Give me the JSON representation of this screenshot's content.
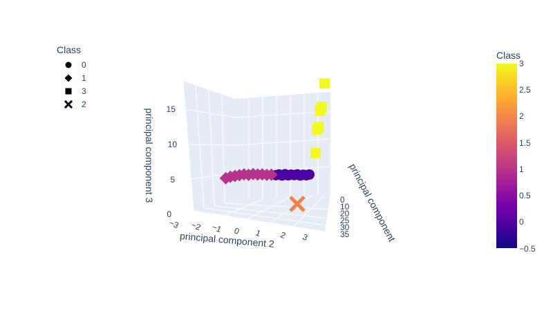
{
  "legend": {
    "title": "Class",
    "items": [
      {
        "label": "0",
        "symbol": "circle"
      },
      {
        "label": "1",
        "symbol": "diamond"
      },
      {
        "label": "3",
        "symbol": "square"
      },
      {
        "label": "2",
        "symbol": "x"
      }
    ]
  },
  "colorbar": {
    "title": "Class",
    "ticks": [
      "3",
      "2.5",
      "2",
      "1.5",
      "1",
      "0.5",
      "0",
      "−0.5"
    ],
    "colorscale": "plasma",
    "range": [
      -0.5,
      3
    ]
  },
  "axes": {
    "x_label": "principal component",
    "y_label": "principal component 2",
    "z_label": "principal component 3",
    "x_ticks": [
      "0",
      "10",
      "20",
      "25",
      "30",
      "35"
    ],
    "y_ticks": [
      "−3",
      "−2",
      "−1",
      "0",
      "1",
      "2",
      "3"
    ],
    "z_ticks": [
      "0",
      "5",
      "10",
      "15"
    ]
  },
  "chart_data": {
    "type": "scatter",
    "subtype": "scatter3d",
    "xlabel": "principal component",
    "ylabel": "principal component 2",
    "zlabel": "principal component 3",
    "ylim": [
      -3,
      3
    ],
    "zlim": [
      0,
      18
    ],
    "grid": true,
    "legend_position": "top-left",
    "series": [
      {
        "name": "0",
        "symbol": "circle",
        "color": "#4a03a1",
        "points": [
          {
            "y": 0.6,
            "z": 3.2
          },
          {
            "y": 0.8,
            "z": 3.3
          },
          {
            "y": 1.0,
            "z": 3.1
          },
          {
            "y": 1.2,
            "z": 3.3
          },
          {
            "y": 1.4,
            "z": 3.1
          },
          {
            "y": 1.6,
            "z": 3.2
          },
          {
            "y": 1.8,
            "z": 3.1
          },
          {
            "y": 2.0,
            "z": 3.2
          },
          {
            "y": 2.2,
            "z": 3.0
          },
          {
            "y": 2.4,
            "z": 3.1
          },
          {
            "y": 2.6,
            "z": 3.0
          },
          {
            "y": 2.8,
            "z": 3.1
          }
        ]
      },
      {
        "name": "1",
        "symbol": "diamond",
        "color": "#b5338a",
        "points": [
          {
            "y": -2.7,
            "z": 3.0
          },
          {
            "y": -2.4,
            "z": 3.2
          },
          {
            "y": -2.1,
            "z": 3.3
          },
          {
            "y": -1.8,
            "z": 3.4
          },
          {
            "y": -1.5,
            "z": 3.5
          },
          {
            "y": -1.2,
            "z": 3.4
          },
          {
            "y": -0.9,
            "z": 3.5
          },
          {
            "y": -0.6,
            "z": 3.4
          },
          {
            "y": -0.3,
            "z": 3.4
          },
          {
            "y": 0.0,
            "z": 3.3
          },
          {
            "y": 0.3,
            "z": 3.3
          }
        ]
      },
      {
        "name": "3",
        "symbol": "square",
        "color": "#f0f921",
        "points": [
          {
            "y": 3.2,
            "z": 6.5
          },
          {
            "y": 3.3,
            "z": 10.2
          },
          {
            "y": 3.4,
            "z": 10.6
          },
          {
            "y": 3.5,
            "z": 13.2
          },
          {
            "y": 3.6,
            "z": 13.8
          },
          {
            "y": 3.8,
            "z": 17.5
          }
        ]
      },
      {
        "name": "2",
        "symbol": "x",
        "color": "#f0814a",
        "points": [
          {
            "y": 2.0,
            "z": -1.5
          }
        ]
      }
    ]
  }
}
